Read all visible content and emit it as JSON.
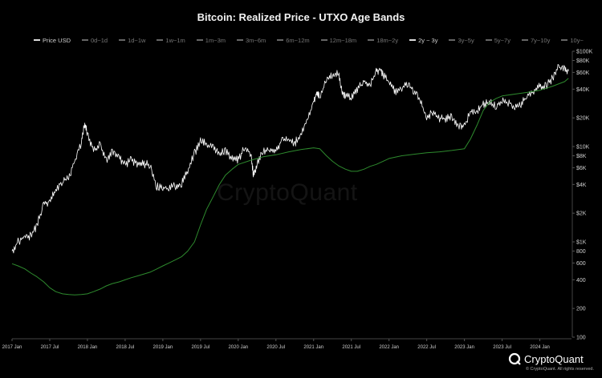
{
  "chart_data": {
    "type": "line",
    "title": "Bitcoin: Realized Price - UTXO Age Bands",
    "y_scale": "log",
    "ylim": [
      100,
      100000
    ],
    "y_ticks": [
      {
        "value": 100,
        "label": "100"
      },
      {
        "value": 200,
        "label": "200"
      },
      {
        "value": 400,
        "label": "400"
      },
      {
        "value": 600,
        "label": "600"
      },
      {
        "value": 800,
        "label": "800"
      },
      {
        "value": 1000,
        "label": "$1K"
      },
      {
        "value": 2000,
        "label": "$2K"
      },
      {
        "value": 4000,
        "label": "$4K"
      },
      {
        "value": 6000,
        "label": "$6K"
      },
      {
        "value": 8000,
        "label": "$8K"
      },
      {
        "value": 10000,
        "label": "$10K"
      },
      {
        "value": 20000,
        "label": "$20K"
      },
      {
        "value": 40000,
        "label": "$40K"
      },
      {
        "value": 60000,
        "label": "$60K"
      },
      {
        "value": 80000,
        "label": "$80K"
      },
      {
        "value": 100000,
        "label": "$100K"
      }
    ],
    "xlim": [
      2017.0,
      2024.42
    ],
    "x_ticks": [
      {
        "value": 2017.0,
        "label": "2017 Jan"
      },
      {
        "value": 2017.5,
        "label": "2017 Jul"
      },
      {
        "value": 2018.0,
        "label": "2018 Jan"
      },
      {
        "value": 2018.5,
        "label": "2018 Jul"
      },
      {
        "value": 2019.0,
        "label": "2019 Jan"
      },
      {
        "value": 2019.5,
        "label": "2019 Jul"
      },
      {
        "value": 2020.0,
        "label": "2020 Jan"
      },
      {
        "value": 2020.5,
        "label": "2020 Jul"
      },
      {
        "value": 2021.0,
        "label": "2021 Jan"
      },
      {
        "value": 2021.5,
        "label": "2021 Jul"
      },
      {
        "value": 2022.0,
        "label": "2022 Jan"
      },
      {
        "value": 2022.5,
        "label": "2022 Jul"
      },
      {
        "value": 2023.0,
        "label": "2023 Jan"
      },
      {
        "value": 2023.5,
        "label": "2023 Jul"
      },
      {
        "value": 2024.0,
        "label": "2024 Jan"
      }
    ],
    "legend": [
      {
        "name": "Price USD",
        "active": true
      },
      {
        "name": "0d~1d",
        "active": false
      },
      {
        "name": "1d~1w",
        "active": false
      },
      {
        "name": "1w~1m",
        "active": false
      },
      {
        "name": "1m~3m",
        "active": false
      },
      {
        "name": "3m~6m",
        "active": false
      },
      {
        "name": "6m~12m",
        "active": false
      },
      {
        "name": "12m~18m",
        "active": false
      },
      {
        "name": "18m~2y",
        "active": false
      },
      {
        "name": "2y ~ 3y",
        "active": true
      },
      {
        "name": "3y~5y",
        "active": false
      },
      {
        "name": "5y~7y",
        "active": false
      },
      {
        "name": "7y~10y",
        "active": false
      },
      {
        "name": "10y~",
        "active": false
      }
    ],
    "series": [
      {
        "name": "Price USD",
        "color": "#ffffff",
        "points": [
          [
            2017.0,
            800
          ],
          [
            2017.08,
            1000
          ],
          [
            2017.17,
            1150
          ],
          [
            2017.25,
            1150
          ],
          [
            2017.33,
            1500
          ],
          [
            2017.42,
            2500
          ],
          [
            2017.5,
            2600
          ],
          [
            2017.58,
            3500
          ],
          [
            2017.67,
            4400
          ],
          [
            2017.75,
            4700
          ],
          [
            2017.83,
            7000
          ],
          [
            2017.92,
            11000
          ],
          [
            2017.96,
            17000
          ],
          [
            2018.0,
            14000
          ],
          [
            2018.08,
            9000
          ],
          [
            2018.17,
            10500
          ],
          [
            2018.25,
            7000
          ],
          [
            2018.33,
            9000
          ],
          [
            2018.42,
            7500
          ],
          [
            2018.5,
            6500
          ],
          [
            2018.58,
            7200
          ],
          [
            2018.67,
            6500
          ],
          [
            2018.75,
            6600
          ],
          [
            2018.83,
            6400
          ],
          [
            2018.92,
            3800
          ],
          [
            2019.0,
            3700
          ],
          [
            2019.08,
            3600
          ],
          [
            2019.17,
            3900
          ],
          [
            2019.25,
            4100
          ],
          [
            2019.33,
            5500
          ],
          [
            2019.42,
            8500
          ],
          [
            2019.5,
            11500
          ],
          [
            2019.58,
            10500
          ],
          [
            2019.67,
            10000
          ],
          [
            2019.75,
            8300
          ],
          [
            2019.83,
            9200
          ],
          [
            2019.92,
            7300
          ],
          [
            2020.0,
            7200
          ],
          [
            2020.08,
            9500
          ],
          [
            2020.17,
            8500
          ],
          [
            2020.2,
            5000
          ],
          [
            2020.25,
            6500
          ],
          [
            2020.33,
            9000
          ],
          [
            2020.42,
            9500
          ],
          [
            2020.5,
            9200
          ],
          [
            2020.58,
            11500
          ],
          [
            2020.67,
            11700
          ],
          [
            2020.75,
            10800
          ],
          [
            2020.83,
            13500
          ],
          [
            2020.92,
            19000
          ],
          [
            2021.0,
            29000
          ],
          [
            2021.04,
            37000
          ],
          [
            2021.08,
            33000
          ],
          [
            2021.17,
            50000
          ],
          [
            2021.25,
            58000
          ],
          [
            2021.33,
            57000
          ],
          [
            2021.38,
            37000
          ],
          [
            2021.42,
            35000
          ],
          [
            2021.5,
            33000
          ],
          [
            2021.58,
            40000
          ],
          [
            2021.67,
            47000
          ],
          [
            2021.75,
            44000
          ],
          [
            2021.83,
            61000
          ],
          [
            2021.88,
            65000
          ],
          [
            2021.92,
            57000
          ],
          [
            2022.0,
            47000
          ],
          [
            2022.08,
            38000
          ],
          [
            2022.17,
            41000
          ],
          [
            2022.25,
            45000
          ],
          [
            2022.33,
            38000
          ],
          [
            2022.42,
            30000
          ],
          [
            2022.5,
            20000
          ],
          [
            2022.58,
            23000
          ],
          [
            2022.67,
            20000
          ],
          [
            2022.75,
            19500
          ],
          [
            2022.83,
            20500
          ],
          [
            2022.92,
            16500
          ],
          [
            2023.0,
            16500
          ],
          [
            2023.08,
            23000
          ],
          [
            2023.17,
            23500
          ],
          [
            2023.25,
            28000
          ],
          [
            2023.33,
            29000
          ],
          [
            2023.42,
            27000
          ],
          [
            2023.5,
            30500
          ],
          [
            2023.58,
            29000
          ],
          [
            2023.67,
            26000
          ],
          [
            2023.75,
            27000
          ],
          [
            2023.83,
            35000
          ],
          [
            2023.92,
            37500
          ],
          [
            2024.0,
            42500
          ],
          [
            2024.08,
            43000
          ],
          [
            2024.17,
            52000
          ],
          [
            2024.25,
            68000
          ],
          [
            2024.33,
            64000
          ],
          [
            2024.38,
            62000
          ]
        ]
      },
      {
        "name": "2y ~ 3y",
        "color": "#2e8b2e",
        "points": [
          [
            2017.0,
            590
          ],
          [
            2017.08,
            560
          ],
          [
            2017.17,
            520
          ],
          [
            2017.25,
            470
          ],
          [
            2017.33,
            430
          ],
          [
            2017.42,
            380
          ],
          [
            2017.5,
            330
          ],
          [
            2017.58,
            300
          ],
          [
            2017.67,
            285
          ],
          [
            2017.75,
            280
          ],
          [
            2017.83,
            278
          ],
          [
            2017.92,
            280
          ],
          [
            2018.0,
            285
          ],
          [
            2018.08,
            300
          ],
          [
            2018.17,
            320
          ],
          [
            2018.25,
            345
          ],
          [
            2018.33,
            365
          ],
          [
            2018.42,
            380
          ],
          [
            2018.5,
            400
          ],
          [
            2018.58,
            420
          ],
          [
            2018.67,
            440
          ],
          [
            2018.75,
            460
          ],
          [
            2018.83,
            480
          ],
          [
            2018.92,
            520
          ],
          [
            2019.0,
            560
          ],
          [
            2019.08,
            600
          ],
          [
            2019.17,
            650
          ],
          [
            2019.25,
            700
          ],
          [
            2019.33,
            800
          ],
          [
            2019.42,
            1000
          ],
          [
            2019.5,
            1500
          ],
          [
            2019.58,
            2200
          ],
          [
            2019.67,
            3000
          ],
          [
            2019.75,
            4000
          ],
          [
            2019.83,
            5000
          ],
          [
            2019.92,
            5800
          ],
          [
            2020.0,
            6500
          ],
          [
            2020.17,
            7200
          ],
          [
            2020.33,
            7800
          ],
          [
            2020.5,
            8200
          ],
          [
            2020.67,
            8800
          ],
          [
            2020.83,
            9300
          ],
          [
            2021.0,
            9700
          ],
          [
            2021.08,
            9500
          ],
          [
            2021.17,
            8000
          ],
          [
            2021.25,
            7000
          ],
          [
            2021.33,
            6300
          ],
          [
            2021.42,
            5800
          ],
          [
            2021.5,
            5500
          ],
          [
            2021.58,
            5500
          ],
          [
            2021.67,
            5800
          ],
          [
            2021.75,
            6200
          ],
          [
            2021.83,
            6500
          ],
          [
            2021.92,
            7000
          ],
          [
            2022.0,
            7500
          ],
          [
            2022.17,
            8000
          ],
          [
            2022.33,
            8300
          ],
          [
            2022.5,
            8600
          ],
          [
            2022.67,
            8800
          ],
          [
            2022.83,
            9100
          ],
          [
            2023.0,
            9500
          ],
          [
            2023.08,
            12000
          ],
          [
            2023.17,
            17000
          ],
          [
            2023.25,
            24000
          ],
          [
            2023.33,
            29000
          ],
          [
            2023.42,
            32000
          ],
          [
            2023.5,
            34000
          ],
          [
            2023.67,
            35500
          ],
          [
            2023.83,
            37000
          ],
          [
            2024.0,
            39000
          ],
          [
            2024.17,
            43000
          ],
          [
            2024.33,
            48000
          ],
          [
            2024.38,
            52000
          ]
        ]
      }
    ]
  },
  "watermark": "CryptoQuant",
  "brand": {
    "name": "CryptoQuant",
    "copyright": "© CryptoQuant. All rights reserved."
  }
}
